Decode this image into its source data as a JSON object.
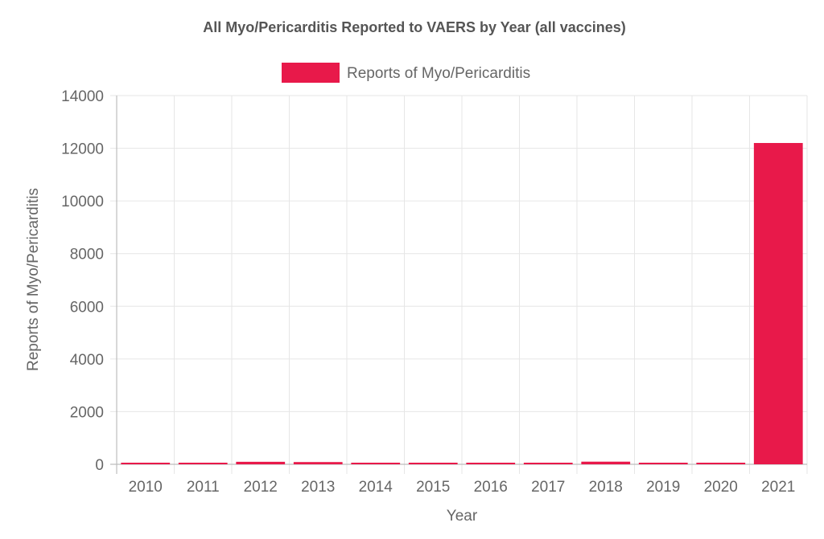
{
  "chart_data": {
    "type": "bar",
    "title": "All Myo/Pericarditis Reported to VAERS by Year (all vaccines)",
    "xlabel": "Year",
    "ylabel": "Reports of Myo/Pericarditis",
    "categories": [
      "2010",
      "2011",
      "2012",
      "2013",
      "2014",
      "2015",
      "2016",
      "2017",
      "2018",
      "2019",
      "2020",
      "2021"
    ],
    "series": [
      {
        "name": "Reports of Myo/Pericarditis",
        "color": "#e8194a",
        "values": [
          45,
          50,
          95,
          85,
          48,
          25,
          38,
          50,
          100,
          45,
          50,
          12200
        ]
      }
    ],
    "ylim": [
      0,
      14000
    ],
    "yticks": [
      0,
      2000,
      4000,
      6000,
      8000,
      10000,
      12000,
      14000
    ],
    "grid": true,
    "legend_position": "top-center"
  }
}
